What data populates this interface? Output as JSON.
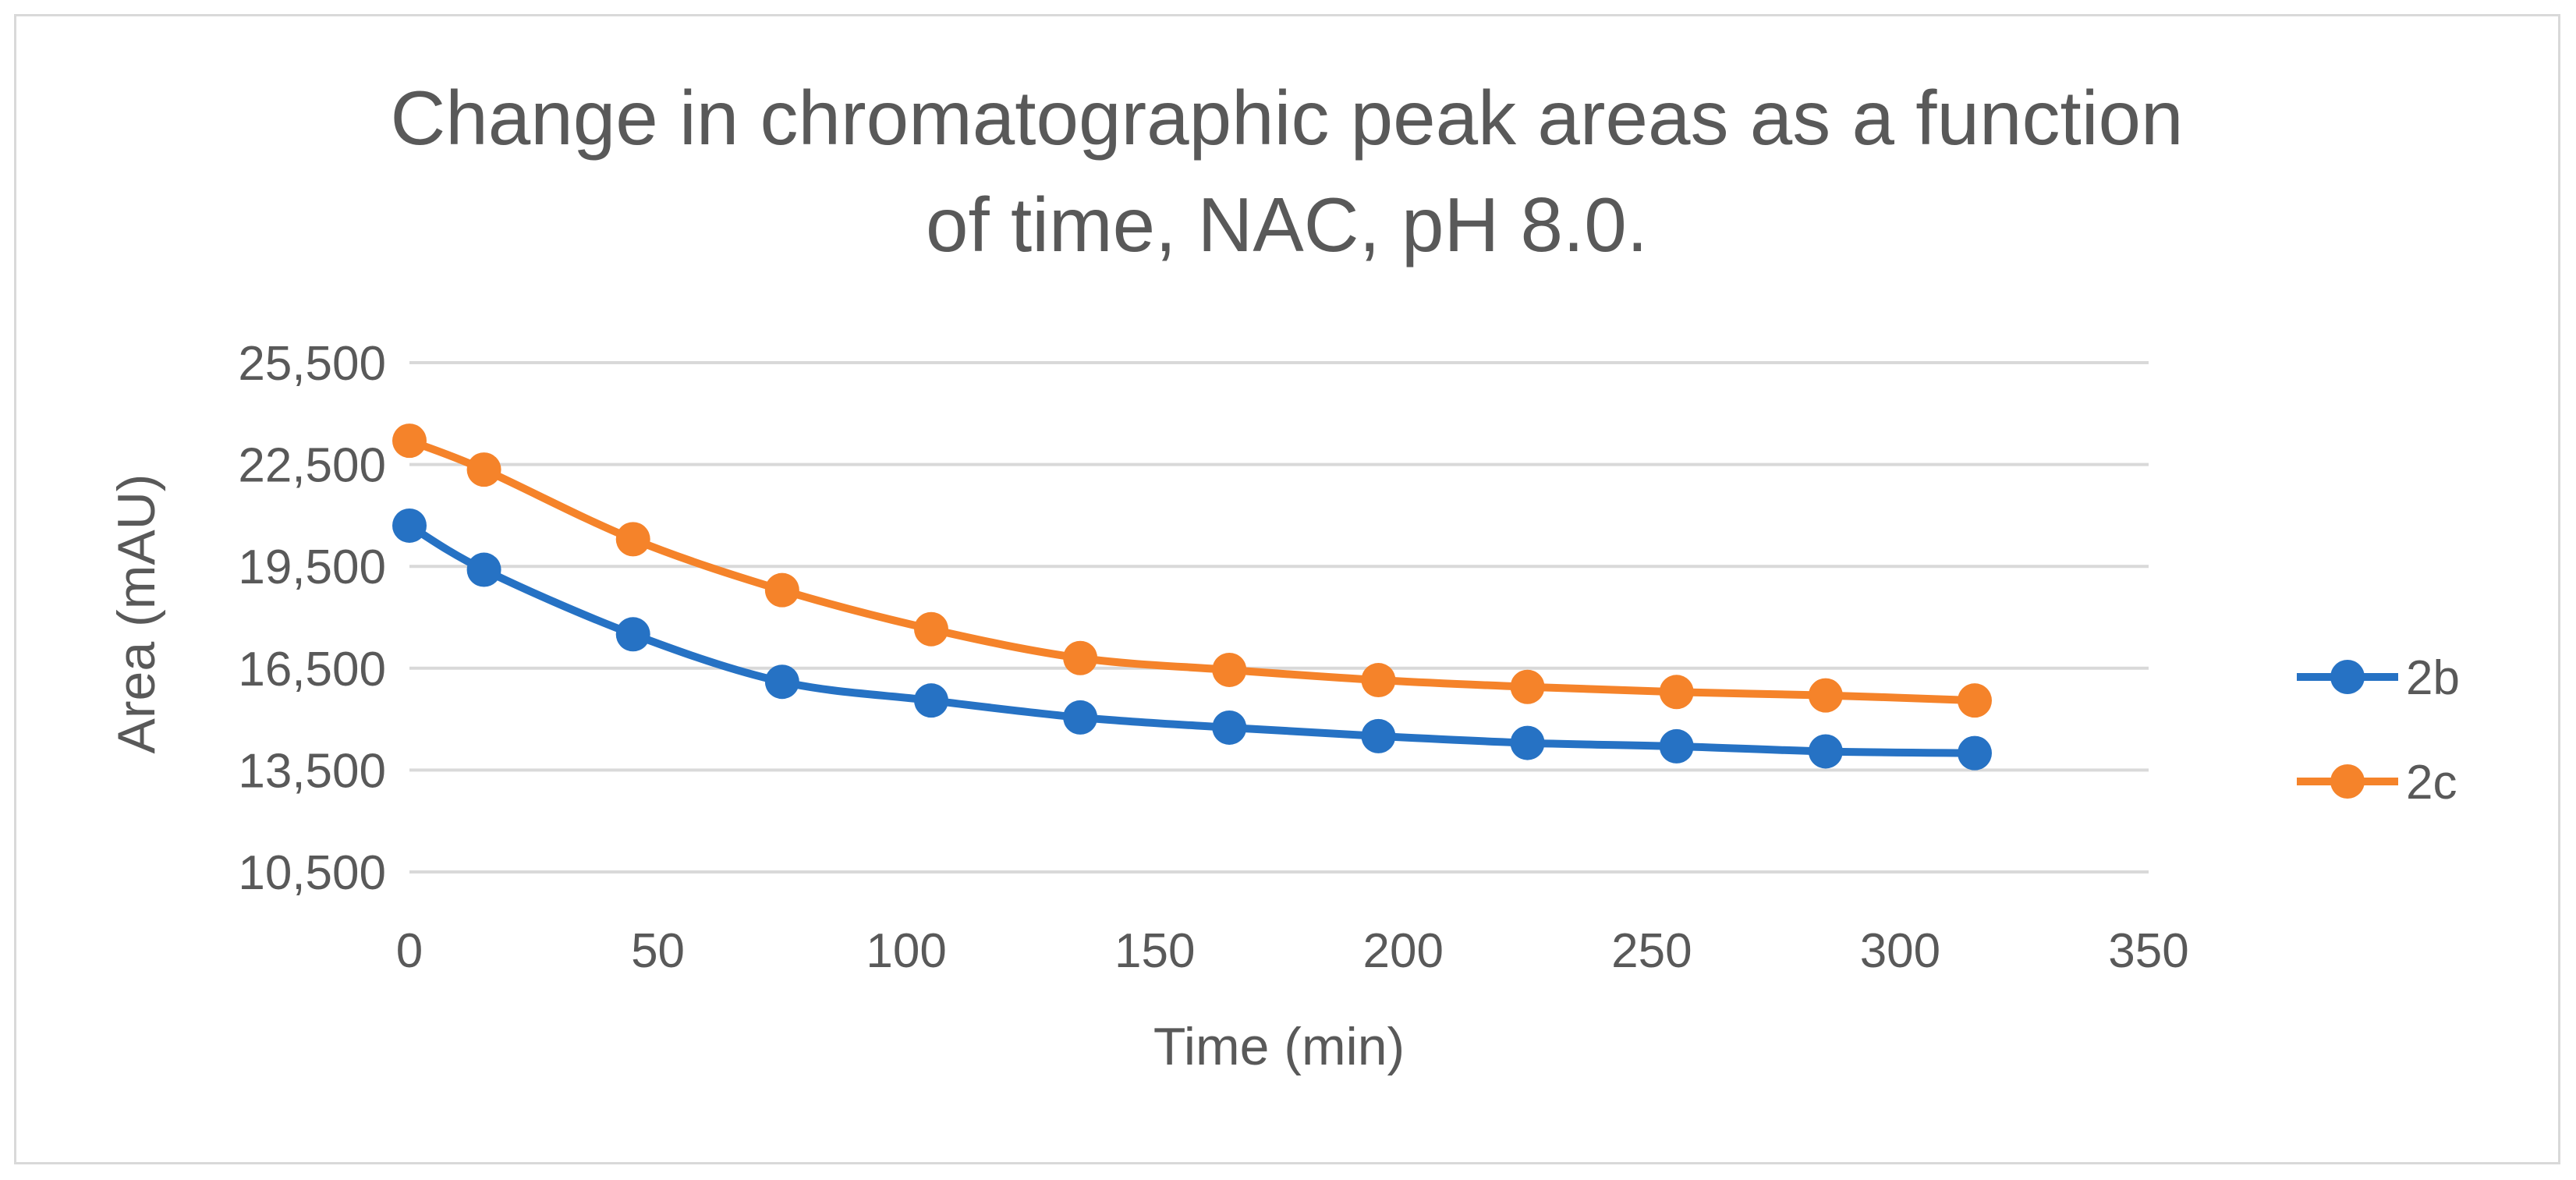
{
  "chart_data": {
    "type": "line",
    "title_lines": [
      "Change in chromatographic peak areas as a function",
      "of time, NAC, pH 8.0."
    ],
    "xlabel": "Time (min)",
    "ylabel": "Area (mAU)",
    "xlim": [
      0,
      350
    ],
    "ylim": [
      10500,
      25500
    ],
    "x_ticks": [
      "0",
      "50",
      "100",
      "150",
      "200",
      "250",
      "300",
      "350"
    ],
    "y_ticks": [
      "25,500",
      "22,500",
      "19,500",
      "16,500",
      "13,500",
      "10,500"
    ],
    "grid": "horizontal",
    "legend_position": "right",
    "smooth": true,
    "series": [
      {
        "name": "2b",
        "color": "#2672C4",
        "x": [
          0,
          15,
          45,
          75,
          105,
          135,
          165,
          195,
          225,
          255,
          285,
          315
        ],
        "y": [
          20700,
          19400,
          17500,
          16100,
          15550,
          15050,
          14750,
          14500,
          14300,
          14200,
          14050,
          14000
        ]
      },
      {
        "name": "2c",
        "color": "#F5832A",
        "x": [
          0,
          15,
          45,
          75,
          105,
          135,
          165,
          195,
          225,
          255,
          285,
          315
        ],
        "y": [
          23200,
          22350,
          20300,
          18800,
          17650,
          16800,
          16450,
          16150,
          15950,
          15800,
          15700,
          15550
        ]
      }
    ]
  }
}
